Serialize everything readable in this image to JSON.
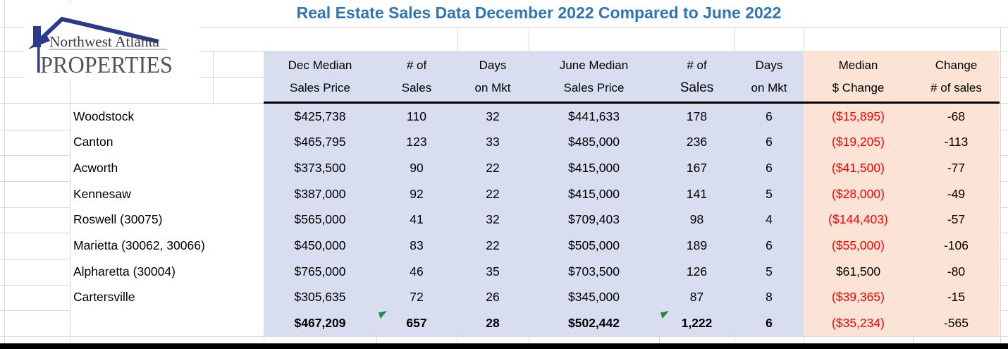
{
  "title": "Real Estate Sales Data December 2022 Compared to June 2022",
  "logo": {
    "line1": "Northwest Atlanta",
    "line2": "PROPERTIES"
  },
  "colors": {
    "title_blue": "#2E75B6",
    "dec_june_fill": "#D8DEF0",
    "change_fill": "#FBE3D5",
    "negative_red": "#FF0000",
    "logo_navy": "#2C3A8C",
    "error_indicator_green": "#1D8E3D",
    "gridline": "#D8D8D8"
  },
  "header": {
    "dec_price": {
      "line1": "Dec Median",
      "line2": "Sales Price"
    },
    "dec_sales": {
      "line1": "# of",
      "line2": "Sales"
    },
    "dec_dom": {
      "line1": "Days",
      "line2": "on Mkt"
    },
    "june_price": {
      "line1": "June Median",
      "line2": "Sales Price"
    },
    "june_sales": {
      "line1": "# of",
      "line2": "Sales"
    },
    "june_dom": {
      "line1": "Days",
      "line2": "on Mkt"
    },
    "median_change": {
      "line1": "Median",
      "line2": "$ Change"
    },
    "change_sales": {
      "line1": "Change",
      "line2": "# of sales"
    }
  },
  "rows": [
    {
      "city": "Woodstock",
      "dec_price": "$425,738",
      "dec_sales": "110",
      "dec_dom": "32",
      "june_price": "$441,633",
      "june_sales": "178",
      "june_dom": "6",
      "median_change": "($15,895)",
      "change_sales": "-68",
      "median_change_negative": true
    },
    {
      "city": "Canton",
      "dec_price": "$465,795",
      "dec_sales": "123",
      "dec_dom": "33",
      "june_price": "$485,000",
      "june_sales": "236",
      "june_dom": "6",
      "median_change": "($19,205)",
      "change_sales": "-113",
      "median_change_negative": true
    },
    {
      "city": "Acworth",
      "dec_price": "$373,500",
      "dec_sales": "90",
      "dec_dom": "22",
      "june_price": "$415,000",
      "june_sales": "167",
      "june_dom": "6",
      "median_change": "($41,500)",
      "change_sales": "-77",
      "median_change_negative": true
    },
    {
      "city": "Kennesaw",
      "dec_price": "$387,000",
      "dec_sales": "92",
      "dec_dom": "22",
      "june_price": "$415,000",
      "june_sales": "141",
      "june_dom": "5",
      "median_change": "($28,000)",
      "change_sales": "-49",
      "median_change_negative": true
    },
    {
      "city": "Roswell (30075)",
      "dec_price": "$565,000",
      "dec_sales": "41",
      "dec_dom": "32",
      "june_price": "$709,403",
      "june_sales": "98",
      "june_dom": "4",
      "median_change": "($144,403)",
      "change_sales": "-57",
      "median_change_negative": true
    },
    {
      "city": "Marietta (30062, 30066)",
      "dec_price": "$450,000",
      "dec_sales": "83",
      "dec_dom": "22",
      "june_price": "$505,000",
      "june_sales": "189",
      "june_dom": "6",
      "median_change": "($55,000)",
      "change_sales": "-106",
      "median_change_negative": true
    },
    {
      "city": "Alpharetta (30004)",
      "dec_price": "$765,000",
      "dec_sales": "46",
      "dec_dom": "35",
      "june_price": "$703,500",
      "june_sales": "126",
      "june_dom": "5",
      "median_change": "$61,500",
      "change_sales": "-80",
      "median_change_negative": false
    },
    {
      "city": "Cartersville",
      "dec_price": "$305,635",
      "dec_sales": "72",
      "dec_dom": "26",
      "june_price": "$345,000",
      "june_sales": "87",
      "june_dom": "8",
      "median_change": "($39,365)",
      "change_sales": "-15",
      "median_change_negative": true
    }
  ],
  "totals": {
    "city": "",
    "dec_price": "$467,209",
    "dec_sales": "657",
    "dec_dom": "28",
    "june_price": "$502,442",
    "june_sales": "1,222",
    "june_dom": "6",
    "median_change": "($35,234)",
    "change_sales": "-565",
    "median_change_negative": true
  }
}
